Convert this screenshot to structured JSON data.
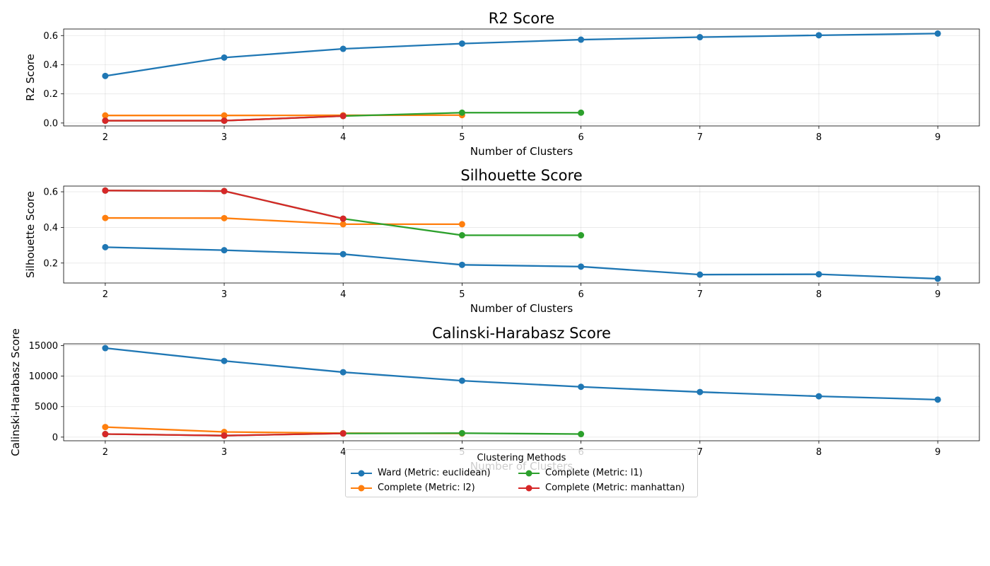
{
  "chart_data": [
    {
      "type": "line",
      "title": "R2 Score",
      "xlabel": "Number of Clusters",
      "ylabel": "R2 Score",
      "xlim": [
        1.65,
        9.35
      ],
      "ylim": [
        -0.02,
        0.645
      ],
      "yticks": [
        0.0,
        0.2,
        0.4,
        0.6
      ],
      "ytick_labels": [
        "0.0",
        "0.2",
        "0.4",
        "0.6"
      ],
      "xticks": [
        2,
        3,
        4,
        5,
        6,
        7,
        8,
        9
      ],
      "xtick_labels": [
        "2",
        "3",
        "4",
        "5",
        "6",
        "7",
        "8",
        "9"
      ],
      "grid": true,
      "series": [
        {
          "name": "Ward (Metric: euclidean)",
          "color": "#1f77b4",
          "x": [
            2,
            3,
            4,
            5,
            6,
            7,
            8,
            9
          ],
          "y": [
            0.323,
            0.449,
            0.509,
            0.545,
            0.572,
            0.589,
            0.602,
            0.614
          ]
        },
        {
          "name": "Complete (Metric: l2)",
          "color": "#ff7f0e",
          "x": [
            2,
            3,
            4,
            5
          ],
          "y": [
            0.052,
            0.052,
            0.053,
            0.054
          ]
        },
        {
          "name": "Complete (Metric: l1)",
          "color": "#2ca02c",
          "x": [
            2,
            3,
            4,
            5,
            6
          ],
          "y": [
            0.016,
            0.016,
            0.048,
            0.071,
            0.071
          ]
        },
        {
          "name": "Complete (Metric: manhattan)",
          "color": "#d62728",
          "x": [
            2,
            3,
            4
          ],
          "y": [
            0.016,
            0.016,
            0.048
          ]
        }
      ]
    },
    {
      "type": "line",
      "title": "Silhouette Score",
      "xlabel": "Number of Clusters",
      "ylabel": "Silhouette Score",
      "xlim": [
        1.65,
        9.35
      ],
      "ylim": [
        0.088,
        0.632
      ],
      "yticks": [
        0.2,
        0.4,
        0.6
      ],
      "ytick_labels": [
        "0.2",
        "0.4",
        "0.6"
      ],
      "xticks": [
        2,
        3,
        4,
        5,
        6,
        7,
        8,
        9
      ],
      "xtick_labels": [
        "2",
        "3",
        "4",
        "5",
        "6",
        "7",
        "8",
        "9"
      ],
      "grid": true,
      "series": [
        {
          "name": "Ward (Metric: euclidean)",
          "color": "#1f77b4",
          "x": [
            2,
            3,
            4,
            5,
            6,
            7,
            8,
            9
          ],
          "y": [
            0.289,
            0.272,
            0.25,
            0.19,
            0.18,
            0.135,
            0.137,
            0.112
          ]
        },
        {
          "name": "Complete (Metric: l2)",
          "color": "#ff7f0e",
          "x": [
            2,
            3,
            4,
            5
          ],
          "y": [
            0.453,
            0.452,
            0.418,
            0.418
          ]
        },
        {
          "name": "Complete (Metric: l1)",
          "color": "#2ca02c",
          "x": [
            2,
            3,
            4,
            5,
            6
          ],
          "y": [
            0.607,
            0.604,
            0.449,
            0.356,
            0.356
          ]
        },
        {
          "name": "Complete (Metric: manhattan)",
          "color": "#d62728",
          "x": [
            2,
            3,
            4
          ],
          "y": [
            0.607,
            0.604,
            0.449
          ]
        }
      ]
    },
    {
      "type": "line",
      "title": "Calinski-Harabasz Score",
      "xlabel": "Number of Clusters",
      "ylabel": "Calinski-Harabasz Score",
      "xlim": [
        1.65,
        9.35
      ],
      "ylim": [
        -600,
        15300
      ],
      "yticks": [
        0,
        5000,
        10000,
        15000
      ],
      "ytick_labels": [
        "0",
        "5000",
        "10000",
        "15000"
      ],
      "xticks": [
        2,
        3,
        4,
        5,
        6,
        7,
        8,
        9
      ],
      "xtick_labels": [
        "2",
        "3",
        "4",
        "5",
        "6",
        "7",
        "8",
        "9"
      ],
      "grid": true,
      "series": [
        {
          "name": "Ward (Metric: euclidean)",
          "color": "#1f77b4",
          "x": [
            2,
            3,
            4,
            5,
            6,
            7,
            8,
            9
          ],
          "y": [
            14600,
            12500,
            10650,
            9250,
            8250,
            7400,
            6700,
            6150
          ]
        },
        {
          "name": "Complete (Metric: l2)",
          "color": "#ff7f0e",
          "x": [
            2,
            3,
            4,
            5
          ],
          "y": [
            1650,
            850,
            650,
            600
          ]
        },
        {
          "name": "Complete (Metric: l1)",
          "color": "#2ca02c",
          "x": [
            2,
            3,
            4,
            5,
            6
          ],
          "y": [
            500,
            250,
            600,
            650,
            500
          ]
        },
        {
          "name": "Complete (Metric: manhattan)",
          "color": "#d62728",
          "x": [
            2,
            3,
            4
          ],
          "y": [
            500,
            250,
            600
          ]
        }
      ]
    }
  ],
  "legend": {
    "title": "Clustering Methods",
    "placement": "bottom-center",
    "items": [
      {
        "label": "Ward (Metric: euclidean)",
        "color": "#1f77b4"
      },
      {
        "label": "Complete (Metric: l2)",
        "color": "#ff7f0e"
      },
      {
        "label": "Complete (Metric: l1)",
        "color": "#2ca02c"
      },
      {
        "label": "Complete (Metric: manhattan)",
        "color": "#d62728"
      }
    ]
  }
}
